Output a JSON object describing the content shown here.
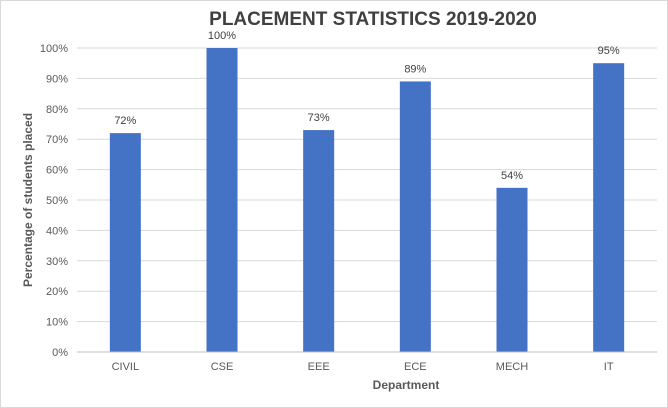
{
  "chart_data": {
    "type": "bar",
    "title": "PLACEMENT STATISTICS 2019-2020",
    "xlabel": "Department",
    "ylabel": "Percentage of students placed",
    "categories": [
      "CIVIL",
      "CSE",
      "EEE",
      "ECE",
      "MECH",
      "IT"
    ],
    "values": [
      72,
      100,
      73,
      89,
      54,
      95
    ],
    "data_labels": [
      "72%",
      "100%",
      "73%",
      "89%",
      "54%",
      "95%"
    ],
    "ylim": [
      0,
      100
    ],
    "yticks": [
      0,
      10,
      20,
      30,
      40,
      50,
      60,
      70,
      80,
      90,
      100
    ],
    "ytick_labels": [
      "0%",
      "10%",
      "20%",
      "30%",
      "40%",
      "50%",
      "60%",
      "70%",
      "80%",
      "90%",
      "100%"
    ],
    "grid": true,
    "legend": "none",
    "colors": {
      "bar": "#4472C4",
      "grid": "#d9d9d9",
      "axis": "#bfbfbf"
    }
  }
}
